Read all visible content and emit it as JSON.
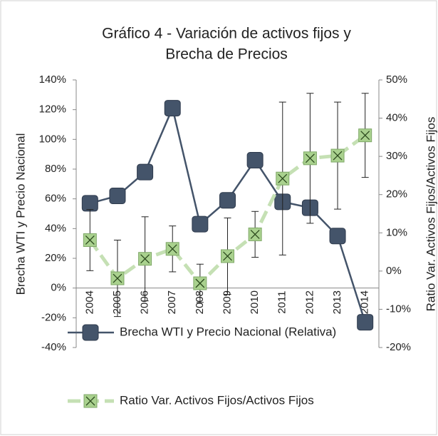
{
  "chart_data": {
    "type": "line",
    "title": [
      "Gráfico 4 - Variación de activos fijos y",
      "Brecha de Precios"
    ],
    "y_label": "Brecha WTI y Precio Nacional",
    "y2_label": "Ratio Var. Activos Fijos/Activos Fijos",
    "categories": [
      "2004",
      "2005",
      "2006",
      "2007",
      "2008",
      "2009",
      "2010",
      "2011",
      "2012",
      "2013",
      "2014"
    ],
    "ylim": [
      -40,
      140
    ],
    "yticks": [
      {
        "value": -40,
        "label": "-40%"
      },
      {
        "value": -20,
        "label": "-20%"
      },
      {
        "value": 0,
        "label": "0%"
      },
      {
        "value": 20,
        "label": "20%"
      },
      {
        "value": 40,
        "label": "40%"
      },
      {
        "value": 60,
        "label": "60%"
      },
      {
        "value": 80,
        "label": "80%"
      },
      {
        "value": 100,
        "label": "100%"
      },
      {
        "value": 120,
        "label": "120%"
      },
      {
        "value": 140,
        "label": "140%"
      }
    ],
    "y2lim": [
      -20,
      50
    ],
    "y2ticks": [
      {
        "value": -20,
        "label": "-20%"
      },
      {
        "value": -10,
        "label": "-10%"
      },
      {
        "value": 0,
        "label": "0%"
      },
      {
        "value": 10,
        "label": "10%"
      },
      {
        "value": 20,
        "label": "20%"
      },
      {
        "value": 30,
        "label": "30%"
      },
      {
        "value": 40,
        "label": "40%"
      },
      {
        "value": 50,
        "label": "50%"
      }
    ],
    "series": [
      {
        "name": "Brecha WTI y Precio Nacional (Relativa)",
        "color": "#44546a",
        "marker": "square",
        "values": [
          57,
          62,
          78,
          121,
          43,
          59,
          86,
          58,
          54,
          35,
          -23
        ]
      },
      {
        "name": "Ratio Var. Activos Fijos/Activos Fijos",
        "color": "#c5e0b4",
        "marker": "x",
        "axis": "y2",
        "dashed": true,
        "values": [
          8.1,
          -1.9,
          3.2,
          5.8,
          -3.2,
          3.9,
          9.6,
          24.2,
          29.5,
          30.2,
          35.5
        ],
        "errors": [
          8,
          10,
          11,
          6,
          5,
          10,
          6,
          20,
          17,
          14,
          11
        ]
      }
    ]
  }
}
